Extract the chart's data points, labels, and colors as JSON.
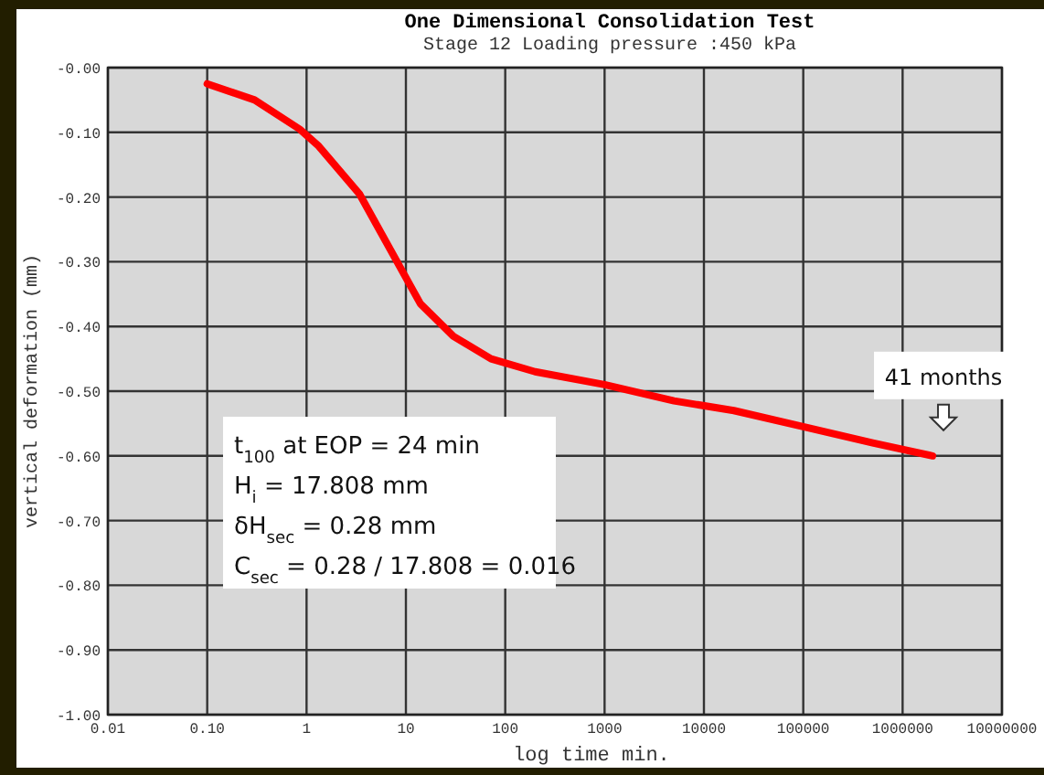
{
  "chart_data": {
    "type": "line",
    "title": "One Dimensional Consolidation Test",
    "subtitle": "Stage 12 Loading pressure :450 kPa",
    "xlabel": "log time min.",
    "ylabel": "vertical deformation (mm)",
    "log": "x",
    "grid": true,
    "marker": "none",
    "line_style": "solid",
    "xlim": [
      0.01,
      10000000
    ],
    "ylim": [
      -1,
      0
    ],
    "xticks": [
      0.01,
      {
        "value": 0.1,
        "label": "0.10"
      },
      1,
      10,
      100,
      1000,
      10000,
      100000,
      1000000,
      10000000
    ],
    "yticks": [
      {
        "value": 0,
        "label": "-0.00"
      },
      {
        "value": -0.1,
        "label": "-0.10"
      },
      {
        "value": -0.2,
        "label": "-0.20"
      },
      {
        "value": -0.3,
        "label": "-0.30"
      },
      {
        "value": -0.4,
        "label": "-0.40"
      },
      {
        "value": -0.5,
        "label": "-0.50"
      },
      {
        "value": -0.6,
        "label": "-0.60"
      },
      {
        "value": -0.7,
        "label": "-0.70"
      },
      {
        "value": -0.8,
        "label": "-0.80"
      },
      {
        "value": -0.9,
        "label": "-0.90"
      },
      {
        "value": -1,
        "label": "-1.00"
      }
    ],
    "x": [
      0.1,
      0.3,
      0.85,
      1.3,
      3.4,
      14,
      30,
      72,
      200,
      1000,
      5000,
      20000,
      100000,
      500000,
      2000000
    ],
    "series": [
      {
        "color": "#ff0000",
        "values": [
          -0.025,
          -0.05,
          -0.095,
          -0.12,
          -0.195,
          -0.365,
          -0.415,
          -0.45,
          -0.47,
          -0.49,
          -0.515,
          -0.53,
          -0.555,
          -0.58,
          -0.6
        ]
      }
    ],
    "annotations": [
      "t$_{100}$ at EOP = 24 min",
      "H$_{i}$ = 17.808 mm",
      "δH$_{sec}$ = 0.28 mm",
      "C$_{sec}$ = 0.28 / 17.808 = 0.016",
      "41 months"
    ]
  }
}
